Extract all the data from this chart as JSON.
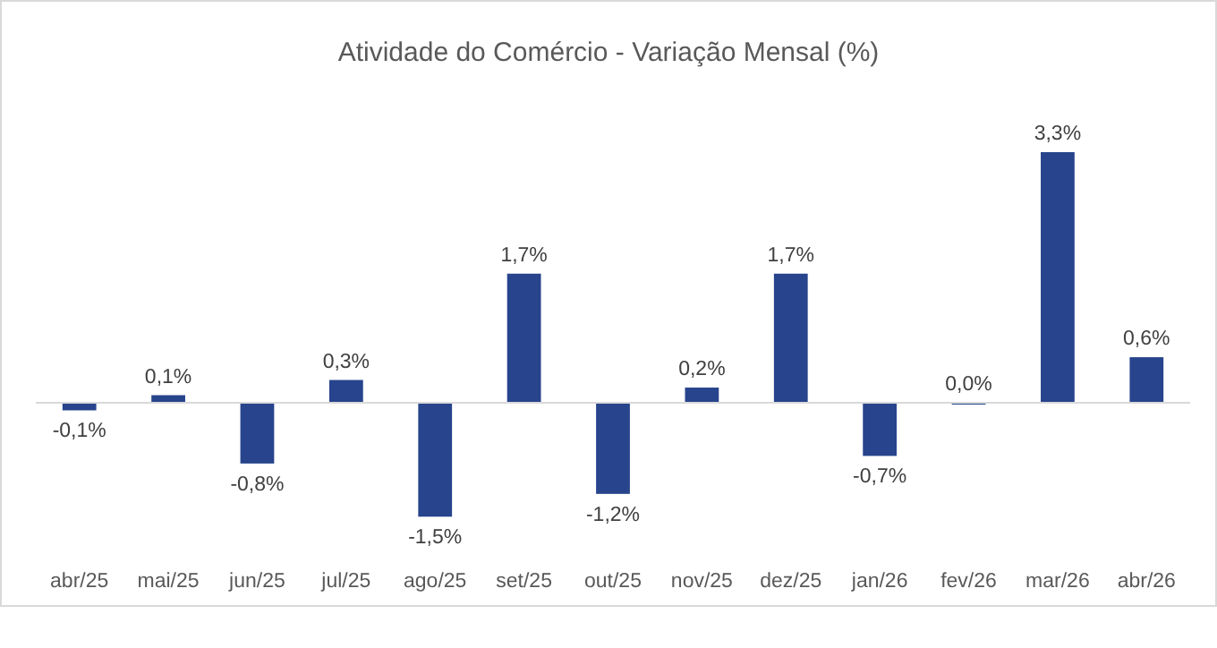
{
  "chart_data": {
    "type": "bar",
    "title": "Atividade do Comércio - Variação Mensal (%)",
    "categories": [
      "abr/25",
      "mai/25",
      "jun/25",
      "jul/25",
      "ago/25",
      "set/25",
      "out/25",
      "nov/25",
      "dez/25",
      "jan/26",
      "fev/26",
      "mar/26",
      "abr/26"
    ],
    "values": [
      -0.1,
      0.1,
      -0.8,
      0.3,
      -1.5,
      1.7,
      -1.2,
      0.2,
      1.7,
      -0.7,
      0.0,
      3.3,
      0.6
    ],
    "value_labels": [
      "-0,1%",
      "0,1%",
      "-0,8%",
      "0,3%",
      "-1,5%",
      "1,7%",
      "-1,2%",
      "0,2%",
      "1,7%",
      "-0,7%",
      "0,0%",
      "3,3%",
      "0,6%"
    ],
    "color": "#27448c"
  }
}
